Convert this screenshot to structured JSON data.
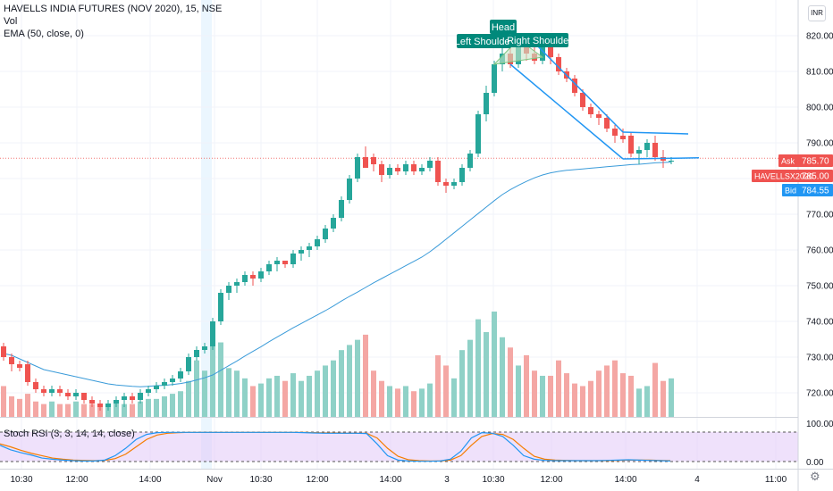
{
  "header": {
    "title": "HAVELLS INDIA FUTURES (NOV 2020), 15, NSE",
    "vol_label": "Vol",
    "ema_label": "EMA (50, close, 0)",
    "currency": "INR"
  },
  "indicator": {
    "label": "Stoch RSI (3, 3, 14, 14, close)",
    "levels": [
      "100.00",
      "0.00"
    ]
  },
  "price_axis": {
    "ticks": [
      "820.00",
      "810.00",
      "800.00",
      "790.00",
      "780.00",
      "770.00",
      "760.00",
      "750.00",
      "740.00",
      "730.00",
      "720.00"
    ]
  },
  "price_tags": {
    "ask_label": "Ask",
    "ask_value": "785.70",
    "last_label": "HAVELLSX2020",
    "last_value": "785.00",
    "bid_label": "Bid",
    "bid_value": "784.55"
  },
  "time_axis": {
    "labels": [
      "10:30",
      "12:00",
      "14:00",
      "Nov",
      "10:30",
      "12:00",
      "14:00",
      "3",
      "10:30",
      "12:00",
      "14:00",
      "4",
      "11:00"
    ]
  },
  "annotations": {
    "head": "Head",
    "left_shoulder": "Left Shoulder",
    "right_shoulder": "Right Shoulder"
  },
  "colors": {
    "up": "#26a69a",
    "down": "#ef5350",
    "vol_up": "#8fd1c7",
    "vol_down": "#f4a7a4",
    "ema": "#3a9bd9",
    "trendline": "#2196f3",
    "annotation_bg": "#00897b",
    "rsi_band": "#e1c8f7",
    "stoch_k": "#2196f3",
    "stoch_d": "#f57c00"
  },
  "chart_data": {
    "type": "candlestick",
    "ylim": [
      713,
      825
    ],
    "candles": [
      {
        "o": 733,
        "h": 734,
        "l": 729,
        "c": 730
      },
      {
        "o": 730,
        "h": 731,
        "l": 726,
        "c": 728
      },
      {
        "o": 728,
        "h": 729,
        "l": 726,
        "c": 727
      },
      {
        "o": 728,
        "h": 729,
        "l": 722,
        "c": 723
      },
      {
        "o": 723,
        "h": 724,
        "l": 720,
        "c": 721
      },
      {
        "o": 721,
        "h": 722,
        "l": 719,
        "c": 720
      },
      {
        "o": 720,
        "h": 722,
        "l": 719,
        "c": 721
      },
      {
        "o": 721,
        "h": 722,
        "l": 719,
        "c": 720
      },
      {
        "o": 720,
        "h": 721,
        "l": 718,
        "c": 719
      },
      {
        "o": 719,
        "h": 721,
        "l": 718,
        "c": 720
      },
      {
        "o": 720,
        "h": 720,
        "l": 717,
        "c": 718
      },
      {
        "o": 718,
        "h": 719,
        "l": 716,
        "c": 717
      },
      {
        "o": 717,
        "h": 718,
        "l": 715,
        "c": 716
      },
      {
        "o": 716,
        "h": 718,
        "l": 715,
        "c": 717
      },
      {
        "o": 717,
        "h": 719,
        "l": 716,
        "c": 718
      },
      {
        "o": 718,
        "h": 720,
        "l": 716,
        "c": 719
      },
      {
        "o": 719,
        "h": 720,
        "l": 717,
        "c": 718
      },
      {
        "o": 718,
        "h": 721,
        "l": 717,
        "c": 720
      },
      {
        "o": 720,
        "h": 722,
        "l": 719,
        "c": 721
      },
      {
        "o": 721,
        "h": 723,
        "l": 720,
        "c": 722
      },
      {
        "o": 722,
        "h": 724,
        "l": 721,
        "c": 723
      },
      {
        "o": 723,
        "h": 725,
        "l": 722,
        "c": 724
      },
      {
        "o": 724,
        "h": 727,
        "l": 723,
        "c": 726
      },
      {
        "o": 726,
        "h": 731,
        "l": 725,
        "c": 730
      },
      {
        "o": 730,
        "h": 733,
        "l": 729,
        "c": 732
      },
      {
        "o": 732,
        "h": 734,
        "l": 731,
        "c": 733
      },
      {
        "o": 733,
        "h": 741,
        "l": 732,
        "c": 740
      },
      {
        "o": 740,
        "h": 749,
        "l": 739,
        "c": 748
      },
      {
        "o": 748,
        "h": 751,
        "l": 746,
        "c": 750
      },
      {
        "o": 750,
        "h": 752,
        "l": 748,
        "c": 751
      },
      {
        "o": 751,
        "h": 754,
        "l": 750,
        "c": 753
      },
      {
        "o": 753,
        "h": 754,
        "l": 750,
        "c": 752
      },
      {
        "o": 752,
        "h": 755,
        "l": 751,
        "c": 754
      },
      {
        "o": 754,
        "h": 757,
        "l": 753,
        "c": 756
      },
      {
        "o": 756,
        "h": 758,
        "l": 754,
        "c": 757
      },
      {
        "o": 757,
        "h": 757,
        "l": 755,
        "c": 756
      },
      {
        "o": 756,
        "h": 760,
        "l": 755,
        "c": 759
      },
      {
        "o": 759,
        "h": 761,
        "l": 757,
        "c": 760
      },
      {
        "o": 760,
        "h": 762,
        "l": 758,
        "c": 761
      },
      {
        "o": 761,
        "h": 764,
        "l": 760,
        "c": 763
      },
      {
        "o": 763,
        "h": 767,
        "l": 762,
        "c": 766
      },
      {
        "o": 766,
        "h": 770,
        "l": 765,
        "c": 769
      },
      {
        "o": 769,
        "h": 775,
        "l": 768,
        "c": 774
      },
      {
        "o": 774,
        "h": 781,
        "l": 773,
        "c": 780
      },
      {
        "o": 780,
        "h": 787,
        "l": 779,
        "c": 786
      },
      {
        "o": 786,
        "h": 789,
        "l": 783,
        "c": 783
      },
      {
        "o": 786,
        "h": 787,
        "l": 782,
        "c": 784
      },
      {
        "o": 784,
        "h": 785,
        "l": 779,
        "c": 781
      },
      {
        "o": 781,
        "h": 784,
        "l": 780,
        "c": 783
      },
      {
        "o": 783,
        "h": 784,
        "l": 781,
        "c": 782
      },
      {
        "o": 782,
        "h": 785,
        "l": 781,
        "c": 784
      },
      {
        "o": 784,
        "h": 785,
        "l": 781,
        "c": 782
      },
      {
        "o": 782,
        "h": 784,
        "l": 781,
        "c": 783
      },
      {
        "o": 783,
        "h": 786,
        "l": 782,
        "c": 785
      },
      {
        "o": 785,
        "h": 786,
        "l": 778,
        "c": 779
      },
      {
        "o": 779,
        "h": 780,
        "l": 776,
        "c": 778
      },
      {
        "o": 778,
        "h": 780,
        "l": 777,
        "c": 779
      },
      {
        "o": 779,
        "h": 784,
        "l": 778,
        "c": 783
      },
      {
        "o": 783,
        "h": 788,
        "l": 782,
        "c": 787
      },
      {
        "o": 787,
        "h": 799,
        "l": 786,
        "c": 798
      },
      {
        "o": 798,
        "h": 806,
        "l": 796,
        "c": 804
      },
      {
        "o": 804,
        "h": 813,
        "l": 803,
        "c": 812
      },
      {
        "o": 812,
        "h": 818,
        "l": 810,
        "c": 815
      },
      {
        "o": 815,
        "h": 817,
        "l": 811,
        "c": 812
      },
      {
        "o": 812,
        "h": 818,
        "l": 811,
        "c": 817
      },
      {
        "o": 817,
        "h": 819,
        "l": 813,
        "c": 815
      },
      {
        "o": 815,
        "h": 817,
        "l": 812,
        "c": 813
      },
      {
        "o": 813,
        "h": 818,
        "l": 812,
        "c": 817
      },
      {
        "o": 817,
        "h": 818,
        "l": 812,
        "c": 814
      },
      {
        "o": 814,
        "h": 815,
        "l": 809,
        "c": 810
      },
      {
        "o": 810,
        "h": 811,
        "l": 807,
        "c": 808
      },
      {
        "o": 808,
        "h": 809,
        "l": 803,
        "c": 804
      },
      {
        "o": 804,
        "h": 805,
        "l": 799,
        "c": 800
      },
      {
        "o": 800,
        "h": 801,
        "l": 797,
        "c": 798
      },
      {
        "o": 798,
        "h": 799,
        "l": 795,
        "c": 797
      },
      {
        "o": 797,
        "h": 798,
        "l": 793,
        "c": 794
      },
      {
        "o": 794,
        "h": 795,
        "l": 790,
        "c": 792
      },
      {
        "o": 792,
        "h": 794,
        "l": 790,
        "c": 791
      },
      {
        "o": 792,
        "h": 793,
        "l": 786,
        "c": 787
      },
      {
        "o": 787,
        "h": 789,
        "l": 784,
        "c": 788
      },
      {
        "o": 788,
        "h": 791,
        "l": 786,
        "c": 790
      },
      {
        "o": 790,
        "h": 792,
        "l": 785,
        "c": 786
      },
      {
        "o": 786,
        "h": 788,
        "l": 783,
        "c": 785
      },
      {
        "o": 785,
        "h": 786,
        "l": 784,
        "c": 785
      }
    ],
    "volume": [
      12,
      8,
      7,
      9,
      6,
      5,
      6,
      5,
      5,
      6,
      5,
      5,
      4,
      5,
      6,
      5,
      5,
      6,
      7,
      7,
      8,
      9,
      10,
      14,
      22,
      18,
      34,
      29,
      19,
      18,
      15,
      12,
      13,
      15,
      16,
      14,
      17,
      14,
      16,
      18,
      20,
      22,
      26,
      28,
      30,
      32,
      18,
      14,
      12,
      11,
      12,
      10,
      11,
      13,
      24,
      20,
      15,
      26,
      30,
      38,
      33,
      41,
      31,
      27,
      20,
      24,
      18,
      16,
      16,
      22,
      17,
      13,
      12,
      14,
      18,
      20,
      22,
      17,
      16,
      11,
      12,
      21,
      14,
      15
    ],
    "ema50": [
      731,
      730.5,
      729.5,
      728.5,
      727.5,
      726.5,
      726,
      725.5,
      725,
      724.5,
      724,
      723.5,
      723,
      722.5,
      722.2,
      722,
      721.8,
      721.7,
      721.8,
      722,
      722.1,
      722.3,
      722.6,
      723,
      723.6,
      724.2,
      725,
      726.3,
      727.6,
      728.9,
      730.3,
      731.6,
      732.9,
      734.3,
      735.6,
      736.9,
      738.2,
      739.4,
      740.6,
      741.8,
      743,
      744.3,
      745.7,
      747,
      748.2,
      749.5,
      750.8,
      752,
      753.2,
      754.4,
      755.6,
      756.8,
      758,
      759.5,
      761.2,
      763,
      764.8,
      766.6,
      768.4,
      770.2,
      772,
      773.8,
      775.5,
      776.9,
      778.1,
      779.2,
      780.2,
      781,
      781.6,
      782,
      782.3,
      782.5,
      782.7,
      782.9,
      783.1,
      783.3,
      783.5,
      783.7,
      783.9,
      784,
      784.2,
      784.4,
      784.5,
      784.6
    ],
    "stoch_k": [
      55,
      40,
      30,
      22,
      12,
      8,
      5,
      3,
      2,
      2,
      5,
      20,
      45,
      75,
      92,
      98,
      99,
      99,
      99,
      99,
      99,
      99,
      99,
      99,
      99,
      99,
      99,
      99,
      99,
      98,
      97,
      96,
      96,
      96,
      96,
      95,
      60,
      20,
      5,
      2,
      1,
      1,
      2,
      8,
      35,
      80,
      98,
      96,
      85,
      55,
      20,
      8,
      4,
      3,
      3,
      3,
      3,
      3,
      4,
      5,
      6,
      5,
      4,
      3,
      2
    ],
    "stoch_d": [
      60,
      50,
      38,
      28,
      20,
      12,
      8,
      5,
      4,
      3,
      4,
      10,
      25,
      50,
      75,
      90,
      96,
      98,
      99,
      99,
      99,
      99,
      99,
      99,
      99,
      99,
      99,
      99,
      99,
      99,
      98,
      97,
      97,
      96,
      96,
      96,
      80,
      45,
      18,
      6,
      3,
      2,
      2,
      5,
      20,
      55,
      85,
      95,
      92,
      75,
      45,
      18,
      8,
      5,
      4,
      3,
      3,
      3,
      3,
      4,
      5,
      5,
      5,
      4,
      3
    ]
  }
}
